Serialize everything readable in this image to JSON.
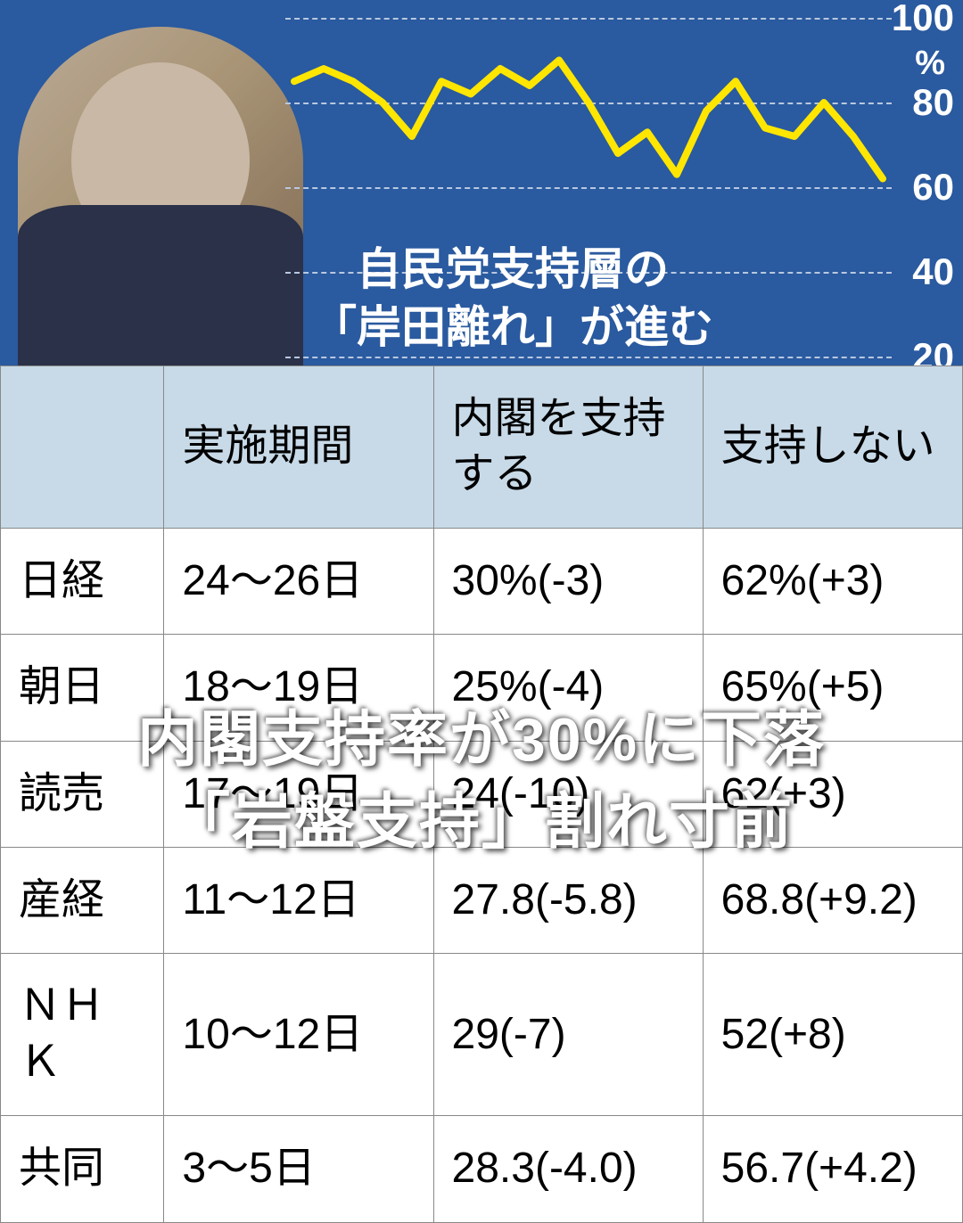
{
  "top": {
    "caption_line1": "自民党支持層の",
    "caption_line2": "「岸田離れ」が進む",
    "caption_color": "#ffffff",
    "caption_fontsize": 50,
    "background_color": "#2a5a9f"
  },
  "chart": {
    "type": "line",
    "ylim": [
      20,
      100
    ],
    "yticks": [
      20,
      40,
      60,
      80,
      100
    ],
    "y_unit": "%",
    "grid_color": "#b8c8e0",
    "line_color": "#ffe600",
    "line_width": 8,
    "values": [
      85,
      88,
      85,
      80,
      72,
      85,
      82,
      88,
      84,
      90,
      80,
      68,
      73,
      63,
      78,
      85,
      74,
      72,
      80,
      72,
      62
    ],
    "label_color": "#ffffff",
    "label_fontsize": 42
  },
  "table": {
    "columns": [
      "",
      "実施期間",
      "内閣を支持する",
      "支持しない"
    ],
    "rows": [
      [
        "日経",
        "24～26日",
        "30%(-3)",
        "62%(+3)"
      ],
      [
        "朝日",
        "18～19日",
        "25%(-4)",
        "65%(+5)"
      ],
      [
        "読売",
        "17～19日",
        "24(-10)",
        "62(+3)"
      ],
      [
        "産経",
        "11～12日",
        "27.8(-5.8)",
        "68.8(+9.2)"
      ],
      [
        "ＮＨＫ",
        "10～12日",
        "29(-7)",
        "52(+8)"
      ],
      [
        "共同",
        "3～5日",
        "28.3(-4.0)",
        "56.7(+4.2)"
      ]
    ],
    "header_bg": "#c8dae8",
    "cell_bg": "#ffffff",
    "border_color": "#888888",
    "fontsize": 48
  },
  "headline": {
    "line1": "内閣支持率が30%に下落",
    "line2": "「岩盤支持」割れ寸前",
    "color": "#ffffff",
    "fontsize": 68
  }
}
